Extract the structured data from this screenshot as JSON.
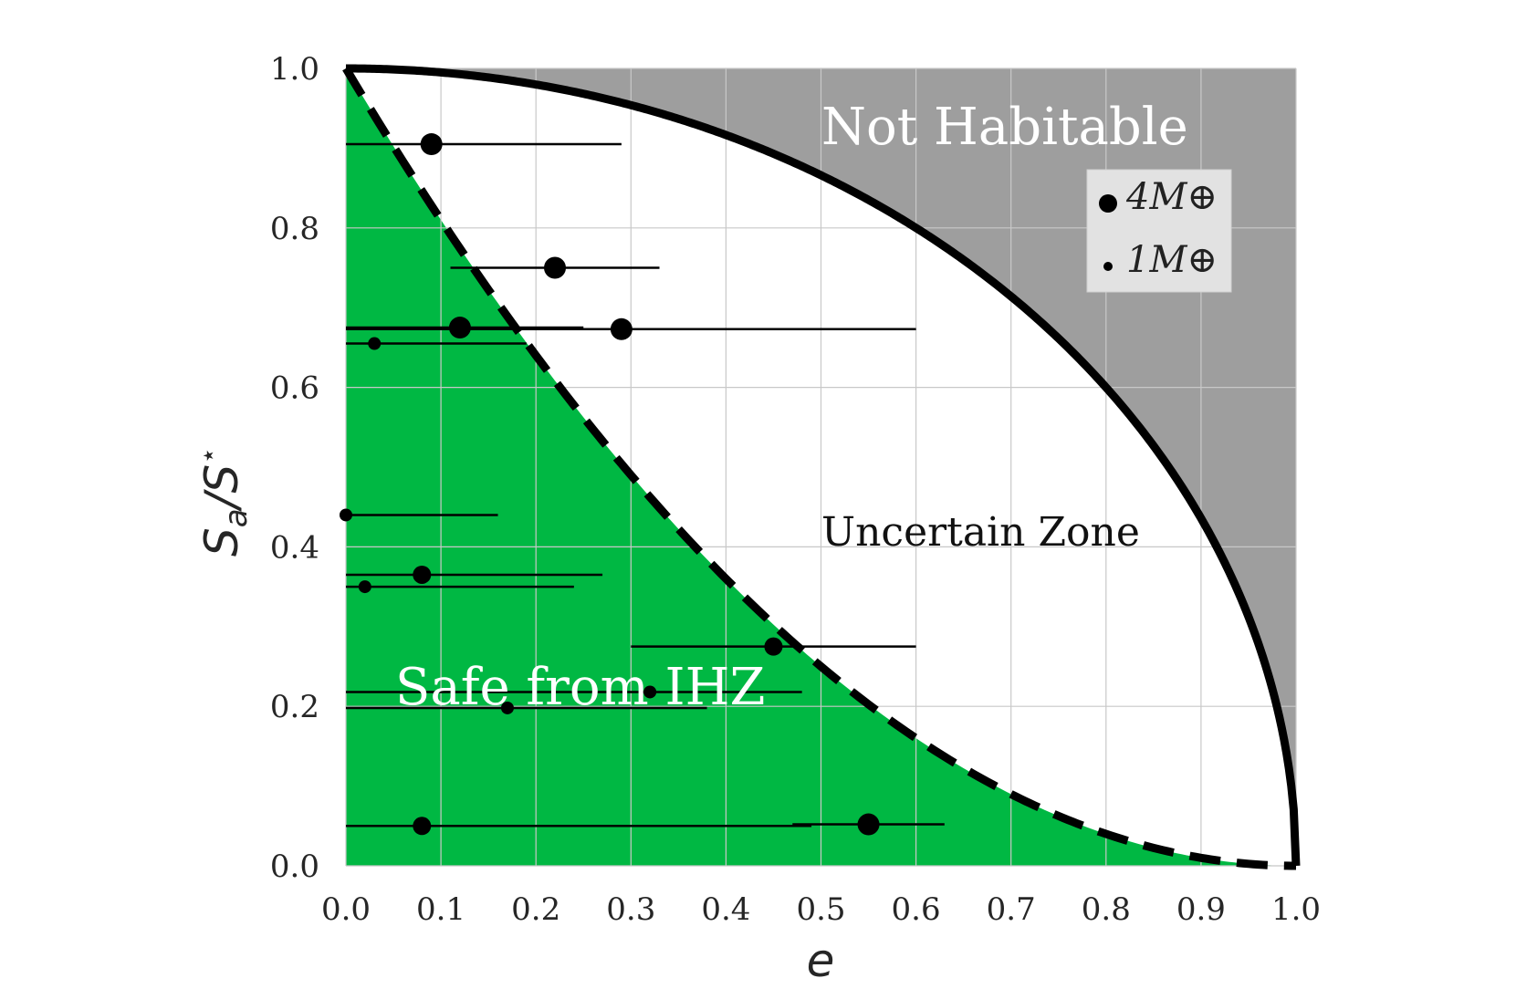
{
  "chart_data": {
    "type": "scatter",
    "xlabel": "e",
    "ylabel": "S_a/S^⋆",
    "xlim": [
      0.0,
      1.0
    ],
    "ylim": [
      0.0,
      1.0
    ],
    "xticks": [
      "0.0",
      "0.1",
      "0.2",
      "0.3",
      "0.4",
      "0.5",
      "0.6",
      "0.7",
      "0.8",
      "0.9",
      "1.0"
    ],
    "yticks": [
      "0.0",
      "0.2",
      "0.4",
      "0.6",
      "0.8",
      "1.0"
    ],
    "grid": true,
    "legend_position": "top-right",
    "legend": [
      {
        "label": "4M⊕",
        "size": "large"
      },
      {
        "label": "1M⊕",
        "size": "small"
      }
    ],
    "regions": {
      "not_habitable": "Not Habitable",
      "uncertain": "Uncertain Zone",
      "safe": "Safe from IHZ"
    },
    "colors": {
      "safe": "#00b843",
      "not_habitable": "#9e9e9e",
      "uncertain": "#ffffff",
      "points": "#000000"
    },
    "points": [
      {
        "e": 0.09,
        "s": 0.905,
        "err_low": 0.0,
        "err_high": 0.29,
        "size": "large"
      },
      {
        "e": 0.22,
        "s": 0.75,
        "err_low": 0.11,
        "err_high": 0.33,
        "size": "large"
      },
      {
        "e": 0.12,
        "s": 0.675,
        "err_low": 0.0,
        "err_high": 0.25,
        "size": "large"
      },
      {
        "e": 0.29,
        "s": 0.673,
        "err_low": 0.0,
        "err_high": 0.6,
        "size": "large"
      },
      {
        "e": 0.03,
        "s": 0.655,
        "err_low": 0.0,
        "err_high": 0.19,
        "size": "small"
      },
      {
        "e": 0.0,
        "s": 0.44,
        "err_low": 0.0,
        "err_high": 0.16,
        "size": "small"
      },
      {
        "e": 0.08,
        "s": 0.365,
        "err_low": 0.0,
        "err_high": 0.27,
        "size": "medium"
      },
      {
        "e": 0.02,
        "s": 0.35,
        "err_low": 0.0,
        "err_high": 0.24,
        "size": "small"
      },
      {
        "e": 0.45,
        "s": 0.275,
        "err_low": 0.3,
        "err_high": 0.6,
        "size": "medium"
      },
      {
        "e": 0.32,
        "s": 0.218,
        "err_low": 0.0,
        "err_high": 0.48,
        "size": "small"
      },
      {
        "e": 0.17,
        "s": 0.198,
        "err_low": 0.0,
        "err_high": 0.38,
        "size": "small"
      },
      {
        "e": 0.08,
        "s": 0.05,
        "err_low": 0.0,
        "err_high": 0.49,
        "size": "medium"
      },
      {
        "e": 0.55,
        "s": 0.052,
        "err_low": 0.47,
        "err_high": 0.63,
        "size": "large"
      }
    ]
  }
}
